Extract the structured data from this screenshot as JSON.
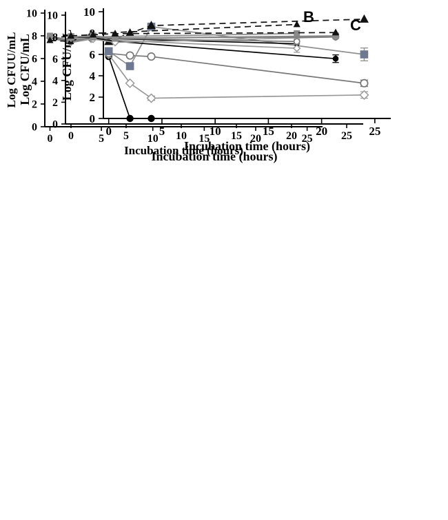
{
  "figure": {
    "background": "#ffffff"
  },
  "chart_data": [
    {
      "type": "line",
      "panel_label": "",
      "title": "",
      "xlabel": "Incubation time (hours)",
      "ylabel": "Log CFU/mL",
      "xlim": [
        -0.5,
        26.5
      ],
      "ylim": [
        0,
        10
      ],
      "xticks": [
        0,
        5,
        10,
        15,
        20,
        25
      ],
      "yticks": [
        0,
        2,
        4,
        6,
        8,
        10
      ],
      "grid": false,
      "legend": "none",
      "series": [
        {
          "name": "filled-circle",
          "marker": "circle-filled",
          "line": "solid",
          "color": "#000000",
          "x": [
            0,
            2,
            4
          ],
          "y": [
            5.8,
            0,
            0
          ],
          "yerr": [
            null,
            null,
            null
          ]
        },
        {
          "name": "open-diamond",
          "marker": "diamond-open",
          "line": "solid",
          "color": "#999999",
          "x": [
            0,
            2,
            4,
            24
          ],
          "y": [
            6.0,
            3.3,
            1.9,
            2.2
          ],
          "yerr": [
            null,
            null,
            0.2,
            0.3
          ]
        },
        {
          "name": "open-circle",
          "marker": "circle-open",
          "line": "solid",
          "color": "#777777",
          "x": [
            0,
            2,
            4,
            24
          ],
          "y": [
            6.1,
            5.9,
            5.8,
            3.3
          ],
          "yerr": [
            null,
            null,
            null,
            0.3
          ]
        },
        {
          "name": "filled-square",
          "marker": "square-filled",
          "line": "solid",
          "color": "#6e7890",
          "line_color": "#8f8f8f",
          "x": [
            0,
            2,
            4,
            24
          ],
          "y": [
            6.3,
            4.9,
            8.6,
            6.0
          ],
          "yerr": [
            null,
            null,
            null,
            0.6
          ]
        },
        {
          "name": "dashed-filled-triangle",
          "marker": "triangle-filled",
          "line": "dashed",
          "color": "#111111",
          "x": [
            0,
            2,
            4,
            24
          ],
          "y": [
            7.2,
            8.0,
            8.7,
            9.3
          ],
          "yerr": [
            null,
            null,
            null,
            null
          ]
        }
      ]
    },
    {
      "type": "line",
      "panel_label": "B",
      "title": "",
      "xlabel": "Incubation time (hours)",
      "ylabel": "Log CFUU/mL",
      "xlim": [
        -0.5,
        26.5
      ],
      "ylim": [
        0,
        10
      ],
      "xticks": [
        0,
        5,
        10,
        15,
        20,
        25
      ],
      "yticks": [
        0,
        2,
        4,
        6,
        8,
        10
      ],
      "grid": false,
      "legend": "none",
      "series": [
        {
          "name": "filled-circle",
          "marker": "circle-filled",
          "line": "solid",
          "color": "#000000",
          "x": [
            0,
            2,
            4,
            24
          ],
          "y": [
            7.9,
            7.5,
            7.8,
            7.3
          ],
          "yerr": [
            null,
            null,
            null,
            null
          ]
        },
        {
          "name": "open-diamond",
          "marker": "diamond-open",
          "line": "solid",
          "color": "#999999",
          "x": [
            0,
            2,
            4,
            24
          ],
          "y": [
            7.8,
            7.4,
            7.7,
            6.9
          ],
          "yerr": [
            null,
            null,
            null,
            0.35
          ]
        },
        {
          "name": "open-circle",
          "marker": "circle-open",
          "line": "solid",
          "color": "#777777",
          "x": [
            0,
            2,
            4,
            24
          ],
          "y": [
            7.9,
            7.5,
            7.8,
            7.5
          ],
          "yerr": [
            null,
            null,
            null,
            0.2
          ]
        },
        {
          "name": "filled-square",
          "marker": "square-filled",
          "line": "solid",
          "color": "#8a8a8a",
          "x": [
            0,
            2,
            4,
            24
          ],
          "y": [
            8.0,
            7.6,
            7.9,
            8.2
          ],
          "yerr": [
            null,
            null,
            null,
            0.25
          ]
        },
        {
          "name": "dashed-filled-triangle",
          "marker": "triangle-filled",
          "line": "dashed",
          "color": "#111111",
          "x": [
            0,
            2,
            4,
            24
          ],
          "y": [
            7.6,
            7.5,
            8.2,
            9.0
          ],
          "yerr": [
            null,
            null,
            null,
            null
          ]
        }
      ]
    },
    {
      "type": "line",
      "panel_label": "C",
      "title": "",
      "xlabel": "Incubation time (hours)",
      "ylabel": "Log CFU/mL",
      "xlim": [
        -0.5,
        26.5
      ],
      "ylim": [
        0,
        10
      ],
      "xticks": [
        0,
        5,
        10,
        15,
        20,
        25
      ],
      "yticks": [
        0,
        2,
        4,
        6,
        8,
        10
      ],
      "grid": false,
      "legend": "none",
      "series": [
        {
          "name": "filled-circle",
          "marker": "circle-filled",
          "line": "solid",
          "color": "#000000",
          "x": [
            0,
            2,
            4,
            24
          ],
          "y": [
            8.0,
            7.9,
            7.6,
            6.0
          ],
          "yerr": [
            0.25,
            null,
            null,
            0.35
          ]
        },
        {
          "name": "open-diamond",
          "marker": "diamond-open",
          "line": "solid",
          "color": "#999999",
          "x": [
            0,
            2,
            4,
            24
          ],
          "y": [
            7.9,
            7.8,
            7.5,
            8.0
          ],
          "yerr": [
            null,
            null,
            null,
            null
          ]
        },
        {
          "name": "open-circle",
          "marker": "circle-open",
          "line": "solid",
          "color": "#777777",
          "x": [
            0,
            2,
            4,
            24
          ],
          "y": [
            8.0,
            8.0,
            7.9,
            8.0
          ],
          "yerr": [
            null,
            0.2,
            null,
            null
          ]
        },
        {
          "name": "filled-square",
          "marker": "square-filled",
          "line": "solid",
          "color": "#8a8a8a",
          "x": [
            0,
            2,
            4,
            24
          ],
          "y": [
            8.0,
            8.1,
            7.9,
            8.1
          ],
          "yerr": [
            0.3,
            null,
            0.3,
            0.2
          ]
        },
        {
          "name": "dashed-filled-triangle",
          "marker": "triangle-filled",
          "line": "dashed",
          "color": "#111111",
          "x": [
            0,
            2,
            4,
            24
          ],
          "y": [
            8.1,
            8.2,
            8.3,
            8.4
          ],
          "yerr": [
            null,
            null,
            null,
            null
          ]
        }
      ]
    }
  ]
}
